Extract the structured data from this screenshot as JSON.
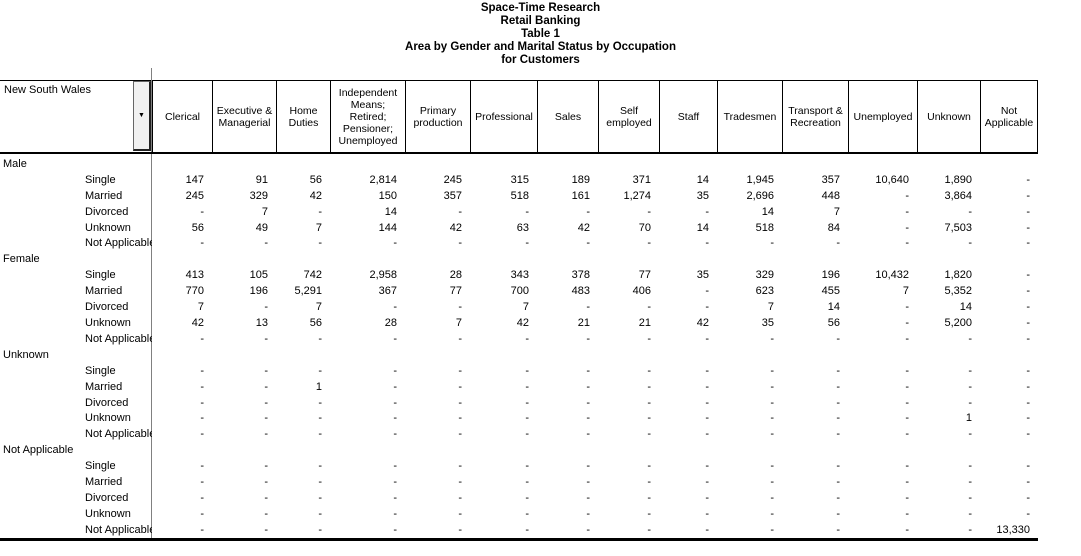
{
  "title": {
    "lines": [
      "Space-Time Research",
      "Retail Banking",
      "Table 1",
      "Area by Gender and Marital Status by Occupation",
      "for Customers"
    ]
  },
  "table": {
    "area_label": "New South Wales",
    "dropdown_icon": "▼",
    "columns": [
      "Clerical",
      "Executive & Managerial",
      "Home Duties",
      "Independent Means; Retired; Pensioner; Unemployed",
      "Primary production",
      "Professional",
      "Sales",
      "Self employed",
      "Staff",
      "Tradesmen",
      "Transport & Recreation",
      "Unemployed",
      "Unknown",
      "Not Applicable"
    ],
    "groups": [
      {
        "label": "Male",
        "rows": [
          {
            "label": "Single",
            "values": [
              "147",
              "91",
              "56",
              "2,814",
              "245",
              "315",
              "189",
              "371",
              "14",
              "1,945",
              "357",
              "10,640",
              "1,890",
              "-"
            ]
          },
          {
            "label": "Married",
            "values": [
              "245",
              "329",
              "42",
              "150",
              "357",
              "518",
              "161",
              "1,274",
              "35",
              "2,696",
              "448",
              "-",
              "3,864",
              "-"
            ]
          },
          {
            "label": "Divorced",
            "values": [
              "-",
              "7",
              "-",
              "14",
              "-",
              "-",
              "-",
              "-",
              "-",
              "14",
              "7",
              "-",
              "-",
              "-"
            ]
          },
          {
            "label": "Unknown",
            "values": [
              "56",
              "49",
              "7",
              "144",
              "42",
              "63",
              "42",
              "70",
              "14",
              "518",
              "84",
              "-",
              "7,503",
              "-"
            ]
          },
          {
            "label": "Not Applicable",
            "values": [
              "-",
              "-",
              "-",
              "-",
              "-",
              "-",
              "-",
              "-",
              "-",
              "-",
              "-",
              "-",
              "-",
              "-"
            ]
          }
        ]
      },
      {
        "label": "Female",
        "rows": [
          {
            "label": "Single",
            "values": [
              "413",
              "105",
              "742",
              "2,958",
              "28",
              "343",
              "378",
              "77",
              "35",
              "329",
              "196",
              "10,432",
              "1,820",
              "-"
            ]
          },
          {
            "label": "Married",
            "values": [
              "770",
              "196",
              "5,291",
              "367",
              "77",
              "700",
              "483",
              "406",
              "-",
              "623",
              "455",
              "7",
              "5,352",
              "-"
            ]
          },
          {
            "label": "Divorced",
            "values": [
              "7",
              "-",
              "7",
              "-",
              "-",
              "7",
              "-",
              "-",
              "-",
              "7",
              "14",
              "-",
              "14",
              "-"
            ]
          },
          {
            "label": "Unknown",
            "values": [
              "42",
              "13",
              "56",
              "28",
              "7",
              "42",
              "21",
              "21",
              "42",
              "35",
              "56",
              "-",
              "5,200",
              "-"
            ]
          },
          {
            "label": "Not Applicable",
            "values": [
              "-",
              "-",
              "-",
              "-",
              "-",
              "-",
              "-",
              "-",
              "-",
              "-",
              "-",
              "-",
              "-",
              "-"
            ]
          }
        ]
      },
      {
        "label": "Unknown",
        "rows": [
          {
            "label": "Single",
            "values": [
              "-",
              "-",
              "-",
              "-",
              "-",
              "-",
              "-",
              "-",
              "-",
              "-",
              "-",
              "-",
              "-",
              "-"
            ]
          },
          {
            "label": "Married",
            "values": [
              "-",
              "-",
              "1",
              "-",
              "-",
              "-",
              "-",
              "-",
              "-",
              "-",
              "-",
              "-",
              "-",
              "-"
            ]
          },
          {
            "label": "Divorced",
            "values": [
              "-",
              "-",
              "-",
              "-",
              "-",
              "-",
              "-",
              "-",
              "-",
              "-",
              "-",
              "-",
              "-",
              "-"
            ]
          },
          {
            "label": "Unknown",
            "values": [
              "-",
              "-",
              "-",
              "-",
              "-",
              "-",
              "-",
              "-",
              "-",
              "-",
              "-",
              "-",
              "1",
              "-"
            ]
          },
          {
            "label": "Not Applicable",
            "values": [
              "-",
              "-",
              "-",
              "-",
              "-",
              "-",
              "-",
              "-",
              "-",
              "-",
              "-",
              "-",
              "-",
              "-"
            ]
          }
        ]
      },
      {
        "label": "Not Applicable",
        "rows": [
          {
            "label": "Single",
            "values": [
              "-",
              "-",
              "-",
              "-",
              "-",
              "-",
              "-",
              "-",
              "-",
              "-",
              "-",
              "-",
              "-",
              "-"
            ]
          },
          {
            "label": "Married",
            "values": [
              "-",
              "-",
              "-",
              "-",
              "-",
              "-",
              "-",
              "-",
              "-",
              "-",
              "-",
              "-",
              "-",
              "-"
            ]
          },
          {
            "label": "Divorced",
            "values": [
              "-",
              "-",
              "-",
              "-",
              "-",
              "-",
              "-",
              "-",
              "-",
              "-",
              "-",
              "-",
              "-",
              "-"
            ]
          },
          {
            "label": "Unknown",
            "values": [
              "-",
              "-",
              "-",
              "-",
              "-",
              "-",
              "-",
              "-",
              "-",
              "-",
              "-",
              "-",
              "-",
              "-"
            ]
          },
          {
            "label": "Not Applicable",
            "values": [
              "-",
              "-",
              "-",
              "-",
              "-",
              "-",
              "-",
              "-",
              "-",
              "-",
              "-",
              "-",
              "-",
              "13,330"
            ]
          }
        ]
      }
    ]
  },
  "colors": {
    "text": "#000000",
    "grid_line": "#000000",
    "divider_line": "#808080",
    "button_face": "#f1f1f1"
  }
}
